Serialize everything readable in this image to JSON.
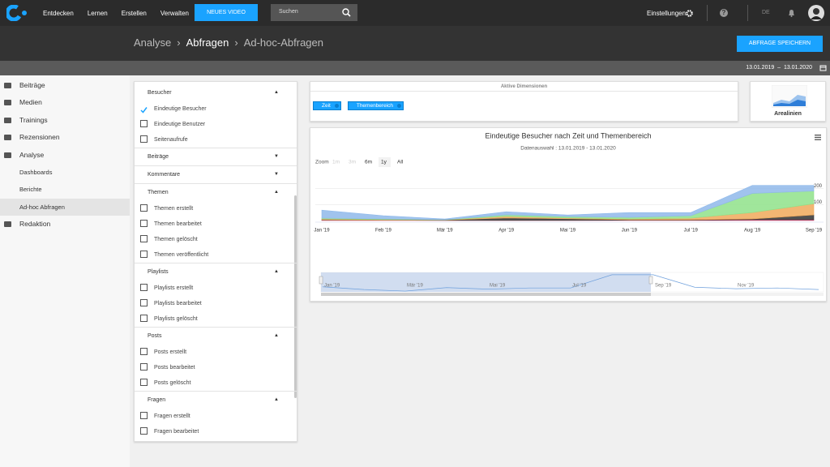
{
  "topbar": {
    "nav": [
      "Entdecken",
      "Lernen",
      "Erstellen",
      "Verwalten"
    ],
    "button": "NEUES VIDEO",
    "search": "Suchen",
    "settings": "Einstellungen",
    "help": "?",
    "lang": "DE"
  },
  "breadcrumb": [
    "Analyse",
    "Abfragen",
    "Ad-hoc-Abfragen"
  ],
  "save_button": "ABFRAGE SPEICHERN",
  "date_range": {
    "from": "13.01.2019",
    "sep": "–",
    "to": "13.01.2020"
  },
  "sidebar": [
    {
      "label": "Beiträge"
    },
    {
      "label": "Medien"
    },
    {
      "label": "Trainings"
    },
    {
      "label": "Rezensionen"
    },
    {
      "label": "Analyse",
      "children": [
        {
          "label": "Dashboards"
        },
        {
          "label": "Berichte"
        },
        {
          "label": "Ad-hoc Abfragen",
          "active": true
        }
      ]
    },
    {
      "label": "Redaktion"
    }
  ],
  "filters": [
    {
      "title": "Besucher",
      "open": true,
      "items": [
        {
          "label": "Eindeutige Besucher",
          "checked": true
        },
        {
          "label": "Eindeutige Benutzer",
          "checked": false
        },
        {
          "label": "Seitenaufrufe",
          "checked": false
        }
      ]
    },
    {
      "title": "Beiträge",
      "open": false,
      "items": []
    },
    {
      "title": "Kommentare",
      "open": false,
      "items": []
    },
    {
      "title": "Themen",
      "open": true,
      "items": [
        {
          "label": "Themen erstellt",
          "checked": false
        },
        {
          "label": "Themen bearbeitet",
          "checked": false
        },
        {
          "label": "Themen gelöscht",
          "checked": false
        },
        {
          "label": "Themen veröffentlicht",
          "checked": false
        }
      ]
    },
    {
      "title": "Playlists",
      "open": true,
      "items": [
        {
          "label": "Playlists erstellt",
          "checked": false
        },
        {
          "label": "Playlists bearbeitet",
          "checked": false
        },
        {
          "label": "Playlists gelöscht",
          "checked": false
        }
      ]
    },
    {
      "title": "Posts",
      "open": true,
      "items": [
        {
          "label": "Posts erstellt",
          "checked": false
        },
        {
          "label": "Posts bearbeitet",
          "checked": false
        },
        {
          "label": "Posts gelöscht",
          "checked": false
        }
      ]
    },
    {
      "title": "Fragen",
      "open": true,
      "items": [
        {
          "label": "Fragen erstellt",
          "checked": false
        },
        {
          "label": "Fragen bearbeitet",
          "checked": false
        }
      ]
    }
  ],
  "dimensions": {
    "title": "Aktive Dimensionen",
    "chips": [
      "Zeit",
      "Themenbereich"
    ]
  },
  "chart_type": "Arealinien",
  "chart_data": {
    "type": "area",
    "stacked": true,
    "title": "Eindeutige Besucher nach Zeit und Themenbereich",
    "subtitle": "Datenauswahl : 13.01.2019 - 13.01.2020",
    "zoom": {
      "label": "Zoom",
      "options": [
        {
          "label": "1m",
          "enabled": false
        },
        {
          "label": "3m",
          "enabled": false
        },
        {
          "label": "6m",
          "enabled": true
        },
        {
          "label": "1y",
          "enabled": true
        },
        {
          "label": "All",
          "enabled": true
        }
      ]
    },
    "categories": [
      "Jan '19",
      "Feb '19",
      "Mär '19",
      "Apr '19",
      "Mai '19",
      "Jun '19",
      "Jul '19",
      "Aug '19",
      "Sep '19"
    ],
    "ylim": [
      0,
      300
    ],
    "yticks": [
      100,
      200
    ],
    "grid": true,
    "series": [
      {
        "color": "#e2487a",
        "values": [
          3,
          2,
          1,
          1,
          1,
          2,
          2,
          5,
          5
        ]
      },
      {
        "color": "#333333",
        "values": [
          2,
          1,
          2,
          15,
          10,
          3,
          3,
          5,
          30
        ]
      },
      {
        "color": "#f0a95a",
        "values": [
          5,
          3,
          1,
          10,
          5,
          5,
          10,
          40,
          70
        ]
      },
      {
        "color": "#8fe28a",
        "values": [
          5,
          4,
          1,
          10,
          9,
          10,
          15,
          120,
          80
        ]
      },
      {
        "color": "#8fb9ea",
        "values": [
          50,
          20,
          5,
          19,
          10,
          30,
          20,
          50,
          35
        ]
      }
    ],
    "navigator": {
      "labels": [
        "Jan '19",
        "Mär '19",
        "Mai '19",
        "Jul '19",
        "Sep '19",
        "Nov '19"
      ],
      "values": [
        65,
        30,
        10,
        55,
        35,
        50,
        50,
        220,
        220,
        60,
        40,
        50,
        30
      ],
      "ylim": [
        0,
        250
      ],
      "color": "#6d9fdc"
    }
  }
}
